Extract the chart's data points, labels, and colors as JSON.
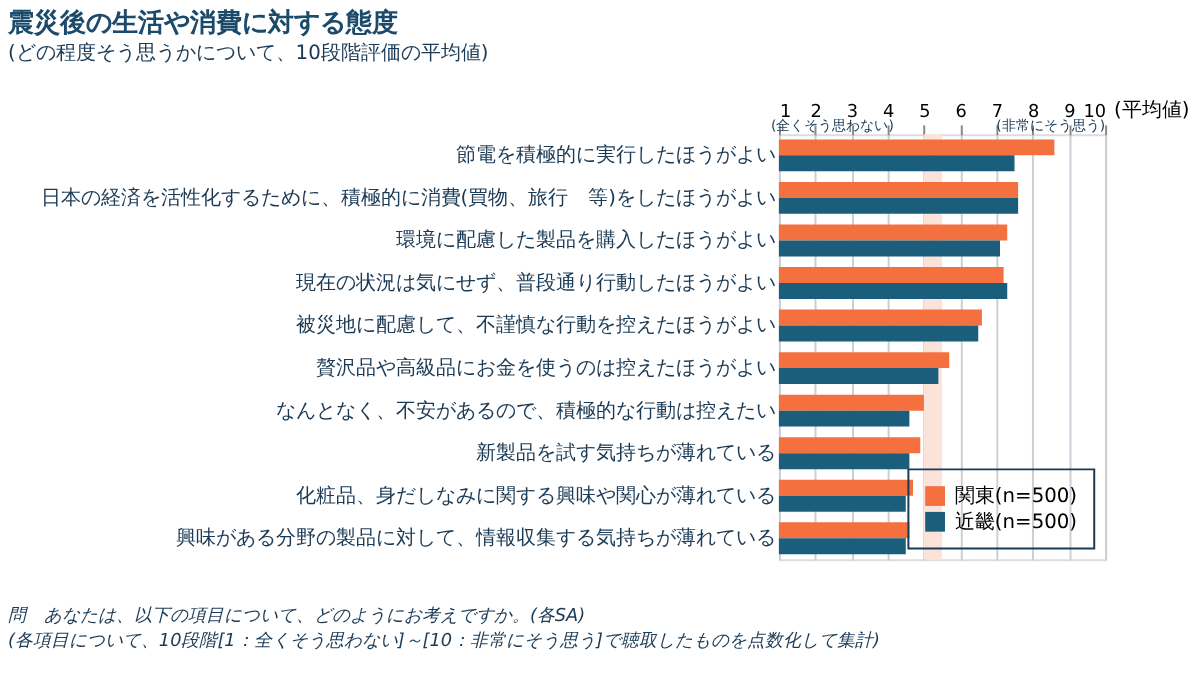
{
  "chart_data": {
    "type": "bar",
    "orientation": "horizontal",
    "title": "震災後の生活や消費に対する態度",
    "subtitle": "(どの程度そう思うかについて、10段階評価の平均値)",
    "xlabel": "(平均値)",
    "categories": [
      "節電を積極的に実行したほうがよい",
      "日本の経済を活性化するために、積極的に消費(買物、旅行　等)をしたほうがよい",
      "環境に配慮した製品を購入したほうがよい",
      "現在の状況は気にせず、普段通り行動したほうがよい",
      "被災地に配慮して、不謹慎な行動を控えたほうがよい",
      "贅沢品や高級品にお金を使うのは控えたほうがよい",
      "なんとなく、不安があるので、積極的な行動は控えたい",
      "新製品を試す気持ちが薄れている",
      "化粧品、身だしなみに関する興味や関心が薄れている",
      "興味がある分野の製品に対して、情報収集する気持ちが薄れている"
    ],
    "series": [
      {
        "name": "関東(n=500)",
        "color": "#f4703f",
        "values": [
          8.6,
          7.6,
          7.3,
          7.2,
          6.6,
          5.7,
          5.0,
          4.9,
          4.7,
          4.6
        ]
      },
      {
        "name": "近畿(n=500)",
        "color": "#1b5e7b",
        "values": [
          7.5,
          7.6,
          7.1,
          7.3,
          6.5,
          5.4,
          4.6,
          4.6,
          4.5,
          4.5
        ]
      }
    ],
    "xlim": [
      1,
      10
    ],
    "xticks": [
      1,
      2,
      3,
      4,
      5,
      6,
      7,
      8,
      9,
      10
    ],
    "grid": "x",
    "legend": "bottom right",
    "bands": [
      {
        "axis": "x",
        "from": 5,
        "to": 5.5,
        "color": "#fbe3da"
      }
    ],
    "annotations": [
      "(全くそう思わない)",
      "(非常にそう思う)",
      "問　あなたは、以下の項目について、どのようにお考えですか。(各SA)",
      "　(各項目について、10段階[1：全くそう思わない]～[10：非常にそう思う]で聴取したものを点数化して集計)"
    ]
  }
}
